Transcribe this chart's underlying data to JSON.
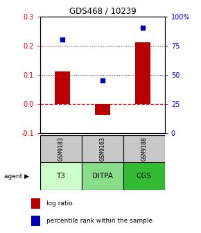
{
  "title": "GDS468 / 10239",
  "samples": [
    "GSM9183",
    "GSM9163",
    "GSM9188"
  ],
  "agents": [
    "T3",
    "DITPA",
    "CGS"
  ],
  "log_ratios": [
    0.11,
    -0.04,
    0.21
  ],
  "percentile_ranks": [
    80,
    45,
    90
  ],
  "bar_color": "#bb0000",
  "dot_color": "#0000bb",
  "ylim_left": [
    -0.1,
    0.3
  ],
  "ylim_right": [
    0,
    100
  ],
  "yticks_left": [
    -0.1,
    0.0,
    0.1,
    0.2,
    0.3
  ],
  "yticks_right": [
    0,
    25,
    50,
    75,
    100
  ],
  "hline_color": "#cc0000",
  "dotted_line_color": "#111111",
  "agent_colors": [
    "#ccffcc",
    "#88dd88",
    "#33bb33"
  ],
  "sample_bg_color": "#c8c8c8",
  "legend_red_label": "log ratio",
  "legend_blue_label": "percentile rank within the sample",
  "figsize": [
    2.9,
    3.36
  ],
  "dpi": 100
}
